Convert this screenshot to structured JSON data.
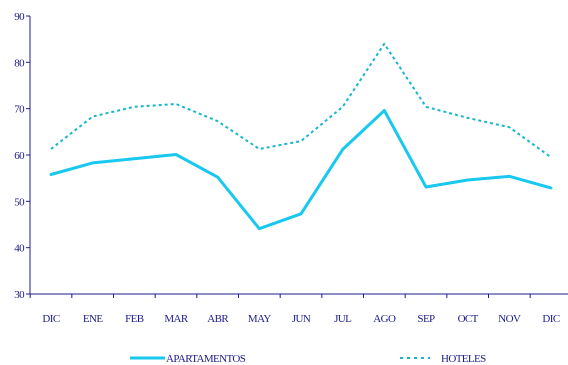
{
  "chart_data": {
    "type": "line",
    "categories": [
      "DIC",
      "ENE",
      "FEB",
      "MAR",
      "ABR",
      "MAY",
      "JUN",
      "JUL",
      "AGO",
      "SEP",
      "OCT",
      "NOV",
      "DIC"
    ],
    "ylim": [
      30,
      90
    ],
    "yticks": [
      "30",
      "40",
      "50",
      "60",
      "70",
      "80",
      "90"
    ],
    "grid": false,
    "legend_position": "bottom",
    "axis_color": "#1c1c8c",
    "series": [
      {
        "name": "APARTAMENTOS",
        "style": "solid",
        "color": "#18c8ef",
        "values": [
          55.8,
          58.3,
          59.2,
          60.1,
          55.2,
          44.1,
          47.3,
          61.2,
          69.6,
          53.1,
          54.6,
          55.4,
          52.9
        ]
      },
      {
        "name": "HOTELES",
        "style": "dotted",
        "color": "#17b7c9",
        "values": [
          61.3,
          68.3,
          70.4,
          71.0,
          67.3,
          61.3,
          63.0,
          70.4,
          84.0,
          70.4,
          68.0,
          66.0,
          59.5
        ]
      }
    ]
  }
}
